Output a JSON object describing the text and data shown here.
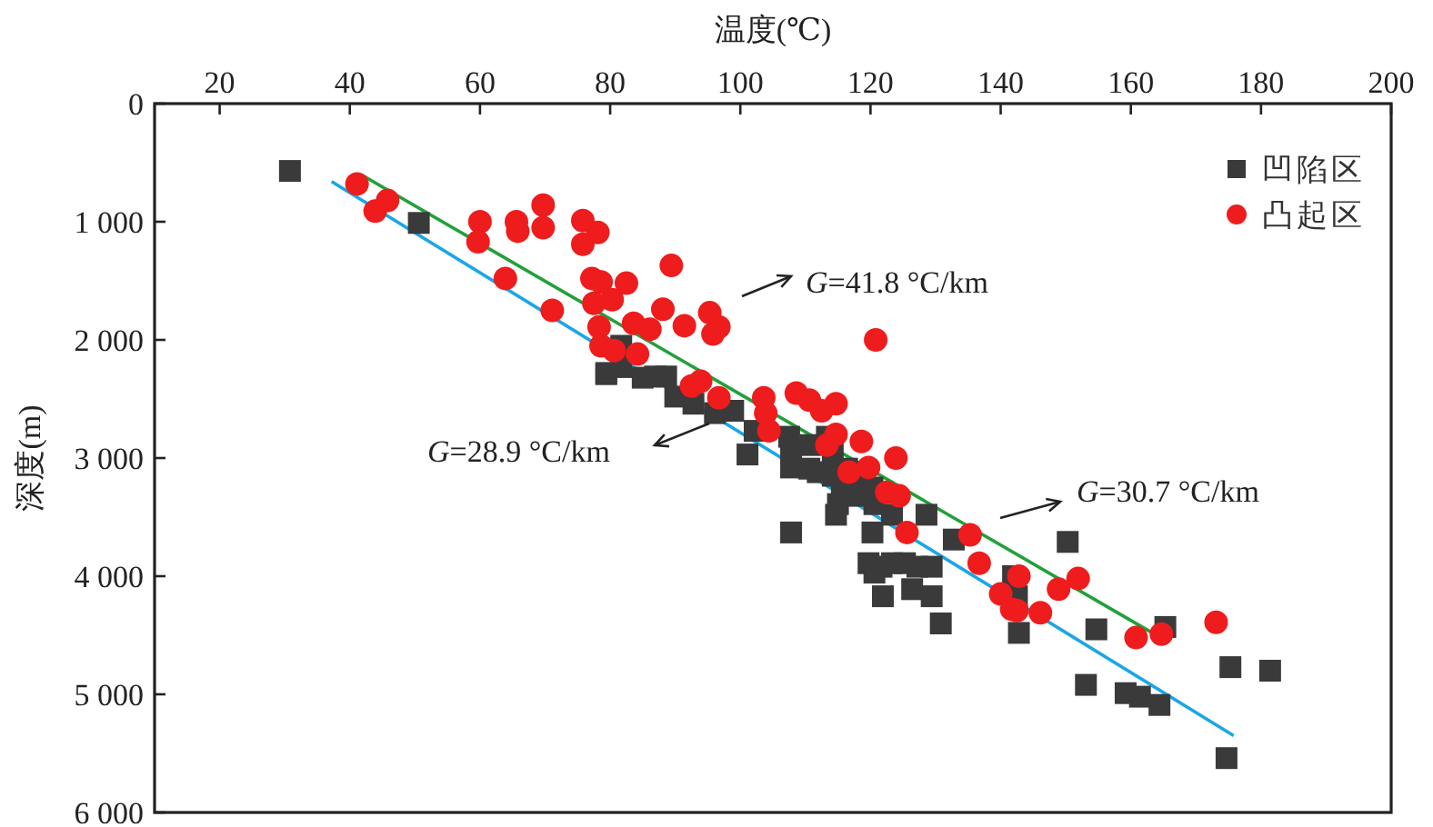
{
  "chart_data": {
    "type": "scatter",
    "xlabel": "温度(℃)",
    "ylabel": "深度(m)",
    "xlim": [
      10,
      200
    ],
    "ylim": [
      6000,
      0
    ],
    "xticks": [
      20,
      40,
      60,
      80,
      100,
      120,
      140,
      160,
      180,
      200
    ],
    "yticks": [
      0,
      {
        "value": 1000,
        "label": "1 000"
      },
      {
        "value": 2000,
        "label": "2 000"
      },
      {
        "value": 3000,
        "label": "3 000"
      },
      {
        "value": 4000,
        "label": "4 000"
      },
      {
        "value": 5000,
        "label": "5 000"
      },
      {
        "value": 6000,
        "label": "6 000"
      }
    ],
    "legend": "top right",
    "series": [
      {
        "name": "凹陷区",
        "type": "scatter",
        "marker": "square",
        "color": "#3a3a3a",
        "x": [
          30.8,
          50.6,
          79.4,
          81.7,
          79.4,
          81.7,
          85.0,
          86.9,
          88.6,
          90.0,
          92.8,
          96.1,
          98.9,
          102.2,
          101.1,
          107.5,
          107.8,
          110.8,
          113.3,
          114.2,
          107.8,
          110.6,
          111.9,
          114.2,
          116.4,
          118.3,
          120.3,
          115.6,
          115.0,
          114.7,
          117.8,
          120.6,
          123.3,
          128.6,
          132.8,
          107.8,
          120.3,
          119.7,
          121.7,
          123.3,
          125.3,
          127.2,
          129.4,
          120.6,
          126.4,
          129.4,
          121.9,
          130.8,
          141.9,
          150.3,
          142.5,
          142.8,
          154.7,
          165.3,
          153.1,
          159.2,
          161.4,
          164.4,
          175.3,
          181.4,
          174.7
        ],
        "values": [
          570,
          1010,
          2290,
          2050,
          2280,
          2230,
          2320,
          2310,
          2310,
          2480,
          2540,
          2620,
          2600,
          2770,
          2970,
          2820,
          2920,
          2890,
          2820,
          2970,
          3080,
          3090,
          3120,
          3150,
          3090,
          3170,
          3250,
          3250,
          3390,
          3480,
          3320,
          3390,
          3480,
          3480,
          3690,
          3630,
          3630,
          3890,
          3920,
          3890,
          3890,
          3920,
          3920,
          3970,
          4110,
          4170,
          4170,
          4400,
          4000,
          3710,
          4170,
          4480,
          4450,
          4430,
          4920,
          4990,
          5020,
          5090,
          4770,
          4800,
          5540
        ]
      },
      {
        "name": "凸起区",
        "type": "scatter",
        "marker": "circle",
        "color": "#ee1c1c",
        "x": [
          41.1,
          43.9,
          45.8,
          60.0,
          59.7,
          65.6,
          65.8,
          69.7,
          69.7,
          75.8,
          78.1,
          75.8,
          63.9,
          71.1,
          77.2,
          78.6,
          77.5,
          80.3,
          78.3,
          78.6,
          80.6,
          84.2,
          83.6,
          86.1,
          88.1,
          91.4,
          95.3,
          96.7,
          95.8,
          120.8,
          92.5,
          93.9,
          96.7,
          103.6,
          103.9,
          104.4,
          108.6,
          110.6,
          112.5,
          114.7,
          114.7,
          113.3,
          116.7,
          118.6,
          119.7,
          123.9,
          122.5,
          124.4,
          125.6,
          135.3,
          136.7,
          140.0,
          141.7,
          142.8,
          142.5,
          146.1,
          148.9,
          151.9,
          160.8,
          164.7,
          173.1,
          89.4,
          82.5
        ],
        "values": [
          680,
          910,
          820,
          1000,
          1170,
          1000,
          1080,
          860,
          1050,
          990,
          1090,
          1190,
          1480,
          1750,
          1480,
          1510,
          1690,
          1660,
          1890,
          2050,
          2090,
          2120,
          1860,
          1910,
          1740,
          1880,
          1770,
          1890,
          1950,
          2000,
          2390,
          2350,
          2490,
          2490,
          2620,
          2770,
          2450,
          2510,
          2600,
          2540,
          2800,
          2890,
          3120,
          2860,
          3080,
          3000,
          3290,
          3320,
          3630,
          3650,
          3890,
          4150,
          4280,
          4000,
          4290,
          4310,
          4110,
          4020,
          4520,
          4490,
          4390,
          1370,
          1520
        ]
      },
      {
        "type": "line",
        "marker": "none",
        "color": "#22a03a",
        "x": [
          41.7,
          163.3
        ],
        "values": [
          600,
          4480
        ]
      },
      {
        "type": "line",
        "marker": "none",
        "color": "#1ba6e8",
        "x": [
          37.2,
          175.8
        ],
        "values": [
          660,
          5350
        ]
      }
    ],
    "annotations": [
      "*G*=41.8 °C/km",
      "*G*=28.9 °C/km",
      "*G*=30.7 °C/km"
    ]
  }
}
